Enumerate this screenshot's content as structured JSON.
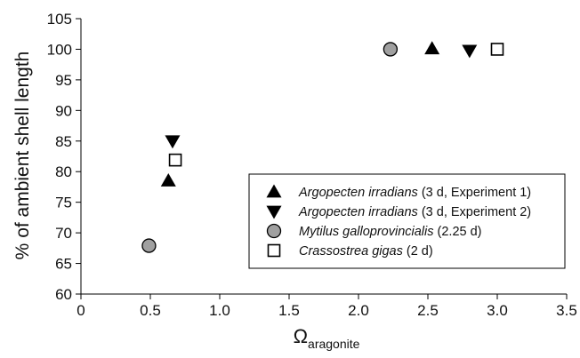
{
  "chart_data": {
    "type": "scatter",
    "title": "",
    "ylabel": "% of ambient shell length",
    "xlabel": {
      "symbol": "Ω",
      "subscript": "aragonite"
    },
    "xlim": [
      0,
      3.5
    ],
    "ylim": [
      60,
      105
    ],
    "xticks": [
      "0",
      "0.5",
      "1.0",
      "1.5",
      "2.0",
      "2.5",
      "3.0",
      "3.5"
    ],
    "xtick_values": [
      0,
      0.5,
      1.0,
      1.5,
      2.0,
      2.5,
      3.0,
      3.5
    ],
    "yticks": [
      "60",
      "65",
      "70",
      "75",
      "80",
      "85",
      "90",
      "95",
      "100",
      "105"
    ],
    "ytick_values": [
      60,
      65,
      70,
      75,
      80,
      85,
      90,
      95,
      100,
      105
    ],
    "grid": false,
    "legend_position": "lower-right",
    "series": [
      {
        "name": "Argopecten irradians",
        "detail": " (3 d, Experiment 1)",
        "marker": "triangle-up",
        "color": "#000000",
        "points": [
          {
            "x": 0.63,
            "y": 78.5
          },
          {
            "x": 2.53,
            "y": 100.1
          }
        ]
      },
      {
        "name": "Argopecten irradians",
        "detail": " (3 d, Experiment 2)",
        "marker": "triangle-down",
        "color": "#000000",
        "points": [
          {
            "x": 0.66,
            "y": 85
          },
          {
            "x": 2.8,
            "y": 99.8
          }
        ]
      },
      {
        "name": "Mytilus galloprovincialis",
        "detail": " (2.25 d)",
        "marker": "circle",
        "color": "#a0a0a0",
        "points": [
          {
            "x": 0.49,
            "y": 67.9
          },
          {
            "x": 2.23,
            "y": 100
          }
        ]
      },
      {
        "name": "Crassostrea gigas",
        "detail": " (2 d)",
        "marker": "square-open",
        "color": "#000000",
        "points": [
          {
            "x": 0.68,
            "y": 81.9
          },
          {
            "x": 3.0,
            "y": 100
          }
        ]
      }
    ]
  }
}
